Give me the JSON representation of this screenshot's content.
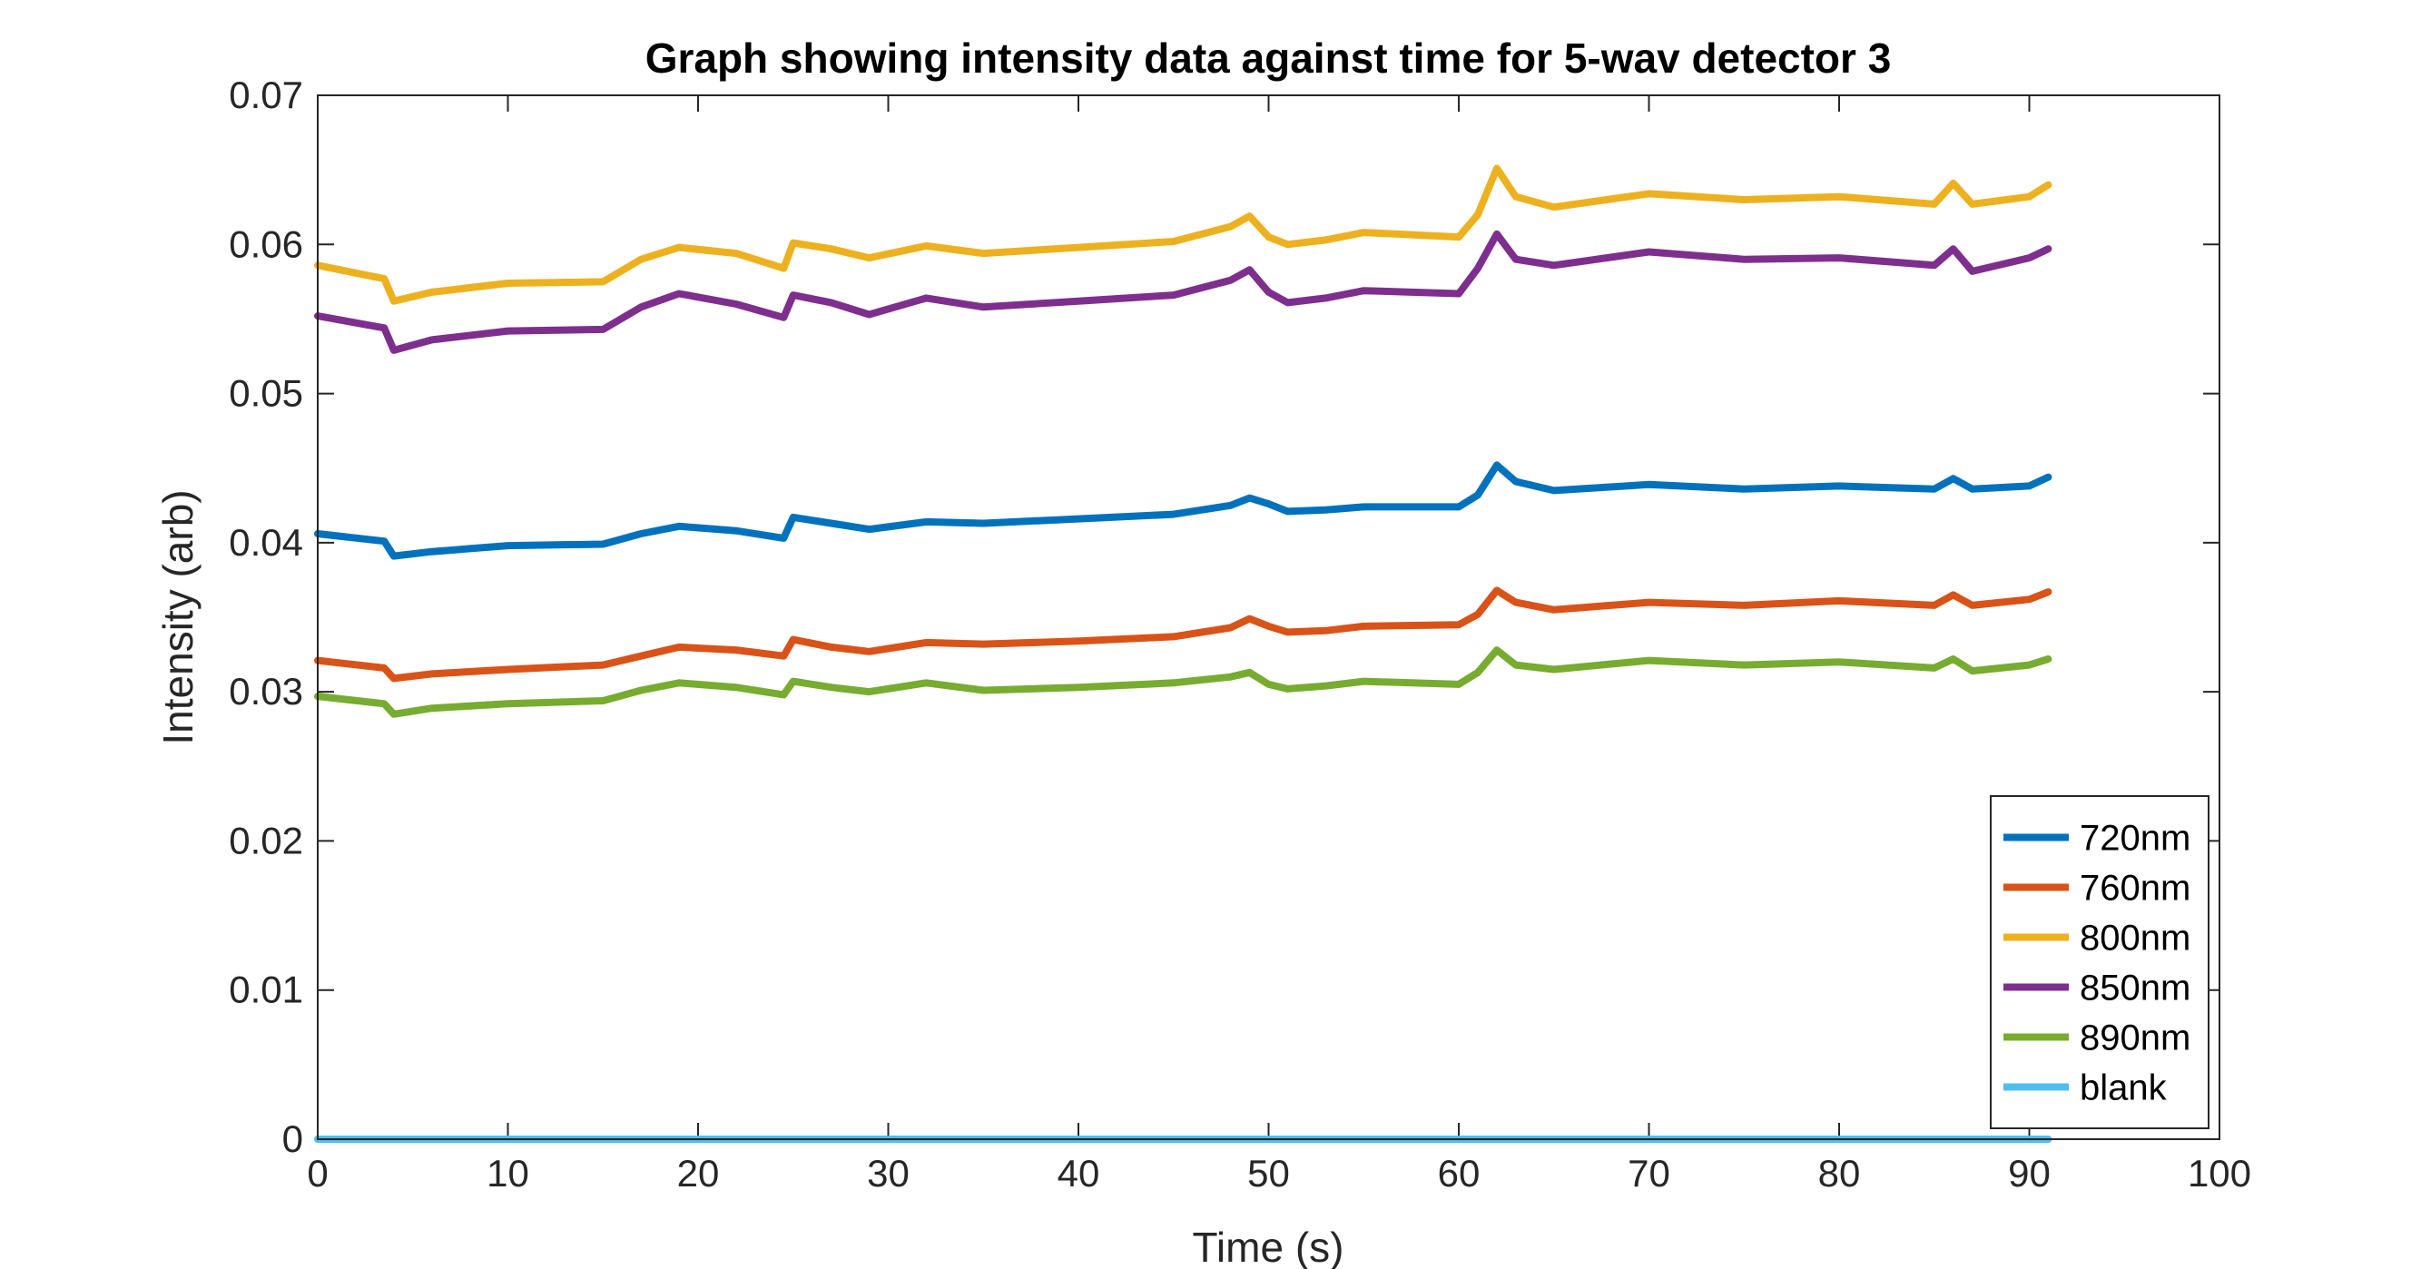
{
  "chart_data": {
    "type": "line",
    "title": "Graph showing intensity data against time for 5-wav detector 3",
    "xlabel": "Time (s)",
    "ylabel": "Intensity (arb)",
    "xlim": [
      0,
      100
    ],
    "ylim": [
      0,
      0.07
    ],
    "xticks": [
      0,
      10,
      20,
      30,
      40,
      50,
      60,
      70,
      80,
      90,
      100
    ],
    "xtick_labels": [
      "0",
      "10",
      "20",
      "30",
      "40",
      "50",
      "60",
      "70",
      "80",
      "90",
      "100"
    ],
    "yticks": [
      0,
      0.01,
      0.02,
      0.03,
      0.04,
      0.05,
      0.06,
      0.07
    ],
    "ytick_labels": [
      "0",
      "0.01",
      "0.02",
      "0.03",
      "0.04",
      "0.05",
      "0.06",
      "0.07"
    ],
    "grid": false,
    "legend_position": "bottom-right",
    "x": [
      0,
      3.5,
      4,
      6,
      10,
      15,
      17,
      19,
      22,
      24.5,
      25,
      27,
      29,
      32,
      35,
      40,
      45,
      48,
      49,
      50,
      51,
      53,
      55,
      60,
      61,
      62,
      63,
      65,
      70,
      75,
      80,
      85,
      86,
      87,
      90,
      91
    ],
    "series": [
      {
        "name": "720nm",
        "color": "#0072BD",
        "values": [
          0.0406,
          0.0401,
          0.0391,
          0.0394,
          0.0398,
          0.0399,
          0.0406,
          0.0411,
          0.0408,
          0.0403,
          0.0417,
          0.0413,
          0.0409,
          0.0414,
          0.0413,
          0.0416,
          0.0419,
          0.0425,
          0.043,
          0.0426,
          0.0421,
          0.0422,
          0.0424,
          0.0424,
          0.0432,
          0.0452,
          0.0441,
          0.0435,
          0.0439,
          0.0436,
          0.0438,
          0.0436,
          0.0443,
          0.0436,
          0.0438,
          0.0444
        ]
      },
      {
        "name": "760nm",
        "color": "#D95319",
        "values": [
          0.0321,
          0.0316,
          0.0309,
          0.0312,
          0.0315,
          0.0318,
          0.0324,
          0.033,
          0.0328,
          0.0324,
          0.0335,
          0.033,
          0.0327,
          0.0333,
          0.0332,
          0.0334,
          0.0337,
          0.0343,
          0.0349,
          0.0344,
          0.034,
          0.0341,
          0.0344,
          0.0345,
          0.0352,
          0.0368,
          0.036,
          0.0355,
          0.036,
          0.0358,
          0.0361,
          0.0358,
          0.0365,
          0.0358,
          0.0362,
          0.0367
        ]
      },
      {
        "name": "800nm",
        "color": "#EDB120",
        "values": [
          0.0586,
          0.0577,
          0.0562,
          0.0568,
          0.0574,
          0.0575,
          0.059,
          0.0598,
          0.0594,
          0.0584,
          0.0601,
          0.0597,
          0.0591,
          0.0599,
          0.0594,
          0.0598,
          0.0602,
          0.0612,
          0.0619,
          0.0605,
          0.06,
          0.0603,
          0.0608,
          0.0605,
          0.062,
          0.0651,
          0.0632,
          0.0625,
          0.0634,
          0.063,
          0.0632,
          0.0627,
          0.0641,
          0.0627,
          0.0632,
          0.064
        ]
      },
      {
        "name": "850nm",
        "color": "#7E2F8E",
        "values": [
          0.0552,
          0.0544,
          0.0529,
          0.0536,
          0.0542,
          0.0543,
          0.0558,
          0.0567,
          0.056,
          0.0551,
          0.0566,
          0.0561,
          0.0553,
          0.0564,
          0.0558,
          0.0562,
          0.0566,
          0.0576,
          0.0583,
          0.0568,
          0.0561,
          0.0564,
          0.0569,
          0.0567,
          0.0584,
          0.0607,
          0.059,
          0.0586,
          0.0595,
          0.059,
          0.0591,
          0.0586,
          0.0597,
          0.0582,
          0.0591,
          0.0597
        ]
      },
      {
        "name": "890nm",
        "color": "#77AC30",
        "values": [
          0.0297,
          0.0292,
          0.0285,
          0.0289,
          0.0292,
          0.0294,
          0.0301,
          0.0306,
          0.0303,
          0.0298,
          0.0307,
          0.0303,
          0.03,
          0.0306,
          0.0301,
          0.0303,
          0.0306,
          0.031,
          0.0313,
          0.0305,
          0.0302,
          0.0304,
          0.0307,
          0.0305,
          0.0313,
          0.0328,
          0.0318,
          0.0315,
          0.0321,
          0.0318,
          0.032,
          0.0316,
          0.0322,
          0.0314,
          0.0318,
          0.0322
        ]
      },
      {
        "name": "blank",
        "color": "#4DBEEE",
        "values": [
          0,
          0,
          0,
          0,
          0,
          0,
          0,
          0,
          0,
          0,
          0,
          0,
          0,
          0,
          0,
          0,
          0,
          0,
          0,
          0,
          0,
          0,
          0,
          0,
          0,
          0,
          0,
          0,
          0,
          0,
          0,
          0,
          0,
          0,
          0,
          0
        ]
      }
    ]
  }
}
